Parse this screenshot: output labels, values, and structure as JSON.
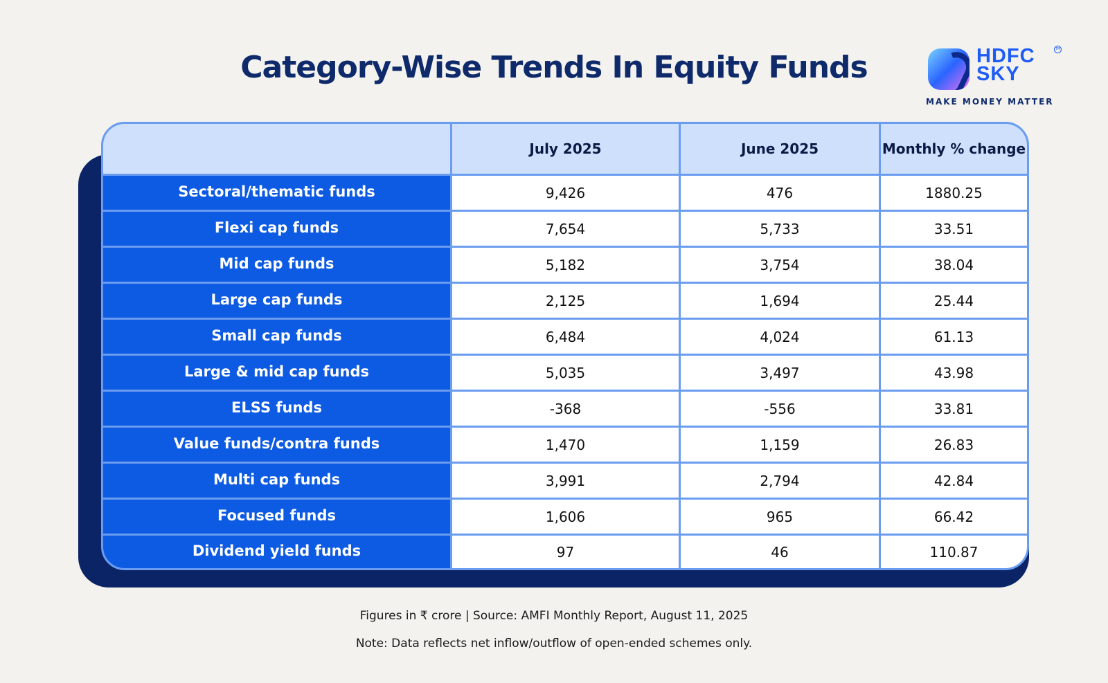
{
  "title": "Category-Wise Trends In Equity Funds",
  "logo": {
    "line1": "HDFC",
    "line2": "SKY",
    "tm": "TM",
    "tagline": "MAKE MONEY MATTER"
  },
  "colors": {
    "title": "#0f2a6b",
    "category_bg": "#0d5ae3",
    "header_bg": "#cfe0fc",
    "border": "#6a9cf0",
    "shadow": "#0b2466"
  },
  "chart_data": {
    "type": "table",
    "columns": [
      "",
      "July 2025",
      "June 2025",
      "Monthly % change"
    ],
    "rows": [
      {
        "category": "Sectoral/thematic funds",
        "july_2025": "9,426",
        "june_2025": "476",
        "monthly_pct_change": "1880.25"
      },
      {
        "category": "Flexi cap funds",
        "july_2025": "7,654",
        "june_2025": "5,733",
        "monthly_pct_change": "33.51"
      },
      {
        "category": "Mid cap funds",
        "july_2025": "5,182",
        "june_2025": "3,754",
        "monthly_pct_change": "38.04"
      },
      {
        "category": "Large cap funds",
        "july_2025": "2,125",
        "june_2025": "1,694",
        "monthly_pct_change": "25.44"
      },
      {
        "category": "Small cap funds",
        "july_2025": "6,484",
        "june_2025": "4,024",
        "monthly_pct_change": "61.13"
      },
      {
        "category": "Large & mid cap funds",
        "july_2025": "5,035",
        "june_2025": "3,497",
        "monthly_pct_change": "43.98"
      },
      {
        "category": "ELSS funds",
        "july_2025": "-368",
        "june_2025": "-556",
        "monthly_pct_change": "33.81"
      },
      {
        "category": "Value funds/contra funds",
        "july_2025": "1,470",
        "june_2025": "1,159",
        "monthly_pct_change": "26.83"
      },
      {
        "category": "Multi cap funds",
        "july_2025": "3,991",
        "june_2025": "2,794",
        "monthly_pct_change": "42.84"
      },
      {
        "category": "Focused funds",
        "july_2025": "1,606",
        "june_2025": "965",
        "monthly_pct_change": "66.42"
      },
      {
        "category": "Dividend yield funds",
        "july_2025": "97",
        "june_2025": "46",
        "monthly_pct_change": "110.87"
      }
    ]
  },
  "footer": {
    "line1": "Figures in ₹ crore  |  Source: AMFI Monthly Report, August 11, 2025",
    "line2": "Note: Data reflects net inflow/outflow of open-ended schemes only."
  }
}
